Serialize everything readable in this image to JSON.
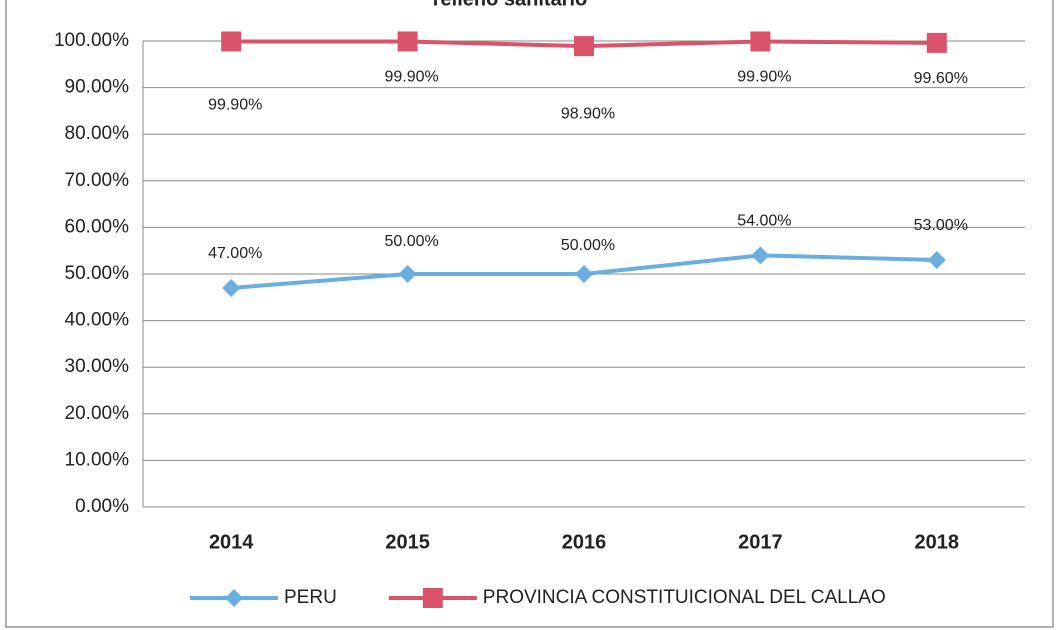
{
  "chart_data": {
    "type": "line",
    "title": "relleno sanitario",
    "categories": [
      "2014",
      "2015",
      "2016",
      "2017",
      "2018"
    ],
    "series": [
      {
        "name": "PERU",
        "color": "#6aaee0",
        "marker": "diamond",
        "values": [
          47,
          50,
          50,
          54,
          53
        ],
        "value_labels": [
          "47.00%",
          "50.00%",
          "50.00%",
          "54.00%",
          "53.00%"
        ]
      },
      {
        "name": "PROVINCIA CONSTITUICIONAL DEL CALLAO",
        "color": "#d9536b",
        "marker": "square",
        "values": [
          99.9,
          99.9,
          98.9,
          99.9,
          99.6
        ],
        "value_labels": [
          "99.90%",
          "99.90%",
          "98.90%",
          "99.90%",
          "99.60%"
        ]
      }
    ],
    "ylim": [
      0,
      100
    ],
    "yticks": [
      {
        "value": 0,
        "label": "0.00%"
      },
      {
        "value": 10,
        "label": "10.00%"
      },
      {
        "value": 20,
        "label": "20.00%"
      },
      {
        "value": 30,
        "label": "30.00%"
      },
      {
        "value": 40,
        "label": "40.00%"
      },
      {
        "value": 50,
        "label": "50.00%"
      },
      {
        "value": 60,
        "label": "60.00%"
      },
      {
        "value": 70,
        "label": "70.00%"
      },
      {
        "value": 80,
        "label": "80.00%"
      },
      {
        "value": 90,
        "label": "90.00%"
      },
      {
        "value": 100,
        "label": "100.00%"
      }
    ],
    "grid": true,
    "legend": "bottom"
  }
}
